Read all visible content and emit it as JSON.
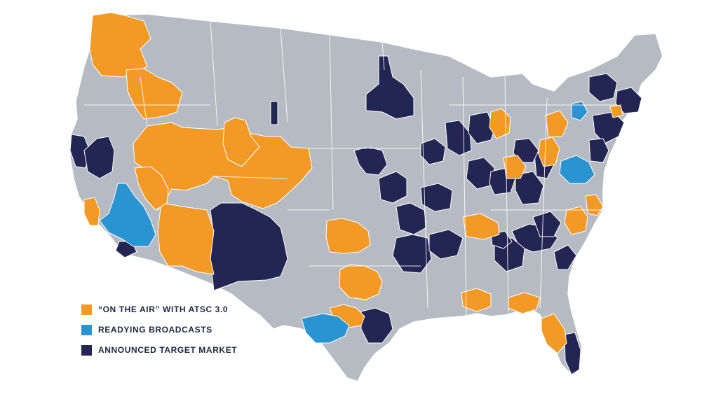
{
  "colors": {
    "background": "#ffffff",
    "land": "#b6bbc3",
    "border": "#ffffff",
    "on_air": "#f39a26",
    "readying": "#2a93d1",
    "announced": "#232653"
  },
  "legend": [
    {
      "label": "“ON THE AIR” WITH ATSC 3.0",
      "status": "on_air"
    },
    {
      "label": "READYING BROADCASTS",
      "status": "readying"
    },
    {
      "label": "ANNOUNCED TARGET MARKET",
      "status": "announced"
    }
  ],
  "markets": [
    {
      "region": "pacific-northwest",
      "status": "on_air"
    },
    {
      "region": "idaho",
      "status": "on_air"
    },
    {
      "region": "great-basin",
      "status": "on_air"
    },
    {
      "region": "colorado",
      "status": "on_air"
    },
    {
      "region": "arizona",
      "status": "on_air"
    },
    {
      "region": "las-vegas",
      "status": "on_air"
    },
    {
      "region": "central-coast-ca",
      "status": "on_air"
    },
    {
      "region": "oklahoma-city",
      "status": "on_air"
    },
    {
      "region": "dallas",
      "status": "on_air"
    },
    {
      "region": "austin",
      "status": "on_air"
    },
    {
      "region": "nashville",
      "status": "on_air"
    },
    {
      "region": "mobile",
      "status": "on_air"
    },
    {
      "region": "jacksonville",
      "status": "on_air"
    },
    {
      "region": "orlando-tampa",
      "status": "on_air"
    },
    {
      "region": "raleigh",
      "status": "on_air"
    },
    {
      "region": "norfolk",
      "status": "on_air"
    },
    {
      "region": "pittsburgh",
      "status": "on_air"
    },
    {
      "region": "buffalo",
      "status": "on_air"
    },
    {
      "region": "columbus",
      "status": "on_air"
    },
    {
      "region": "detroit",
      "status": "on_air"
    },
    {
      "region": "hartford",
      "status": "on_air"
    },
    {
      "region": "los-angeles",
      "status": "readying"
    },
    {
      "region": "san-antonio",
      "status": "readying"
    },
    {
      "region": "washington-dc",
      "status": "readying"
    },
    {
      "region": "syracuse",
      "status": "readying"
    },
    {
      "region": "san-diego",
      "status": "announced"
    },
    {
      "region": "sacramento",
      "status": "announced"
    },
    {
      "region": "bay-area",
      "status": "announced"
    },
    {
      "region": "new-mexico",
      "status": "announced"
    },
    {
      "region": "minneapolis",
      "status": "announced"
    },
    {
      "region": "montana-sliver",
      "status": "announced"
    },
    {
      "region": "omaha",
      "status": "announced"
    },
    {
      "region": "kansas-city",
      "status": "announced"
    },
    {
      "region": "tulsa",
      "status": "announced"
    },
    {
      "region": "little-rock",
      "status": "announced"
    },
    {
      "region": "memphis",
      "status": "announced"
    },
    {
      "region": "houston",
      "status": "announced"
    },
    {
      "region": "st-louis",
      "status": "announced"
    },
    {
      "region": "milwaukee",
      "status": "announced"
    },
    {
      "region": "chicago",
      "status": "announced"
    },
    {
      "region": "grand-rapids",
      "status": "announced"
    },
    {
      "region": "indianapolis",
      "status": "announced"
    },
    {
      "region": "louisville",
      "status": "announced"
    },
    {
      "region": "cincinnati",
      "status": "announced"
    },
    {
      "region": "charleston-wv",
      "status": "announced"
    },
    {
      "region": "cleveland",
      "status": "announced"
    },
    {
      "region": "knoxville",
      "status": "announced"
    },
    {
      "region": "atlanta",
      "status": "announced"
    },
    {
      "region": "charlotte",
      "status": "announced"
    },
    {
      "region": "chattanooga",
      "status": "announced"
    },
    {
      "region": "myrtle-beach",
      "status": "announced"
    },
    {
      "region": "new-york",
      "status": "announced"
    },
    {
      "region": "philadelphia",
      "status": "announced"
    },
    {
      "region": "burlington",
      "status": "announced"
    },
    {
      "region": "boston",
      "status": "announced"
    },
    {
      "region": "west-palm",
      "status": "announced"
    }
  ]
}
